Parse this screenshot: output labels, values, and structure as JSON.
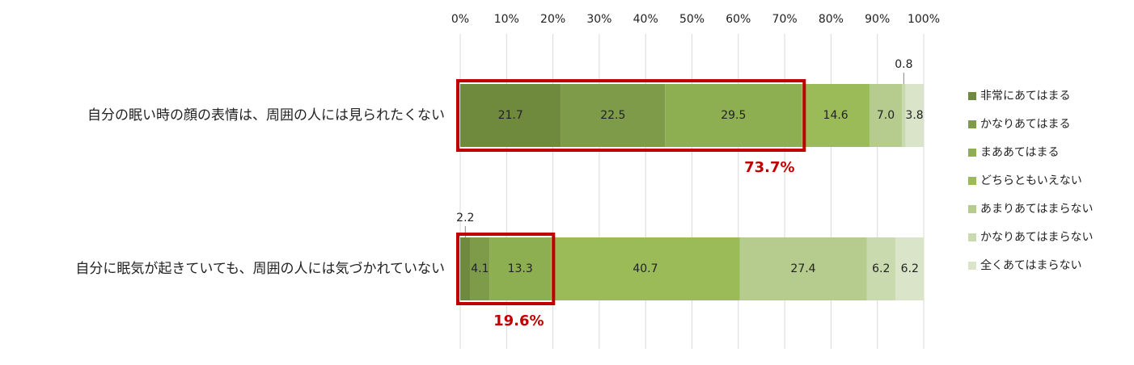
{
  "chart_data": {
    "type": "stacked_bar_horizontal",
    "categories": [
      "自分の眠い時の顔の表情は、周囲の人には見られたくない",
      "自分に眠気が起きていても、周囲の人には気づかれていない"
    ],
    "series": [
      {
        "name": "非常にあてはまる",
        "color": "#6f8a3c",
        "values": [
          21.7,
          2.2
        ]
      },
      {
        "name": "かなりあてはまる",
        "color": "#7d9b49",
        "values": [
          22.5,
          4.1
        ]
      },
      {
        "name": "まああてはまる",
        "color": "#8eae52",
        "values": [
          29.5,
          13.3
        ]
      },
      {
        "name": "どちらともいえない",
        "color": "#9bbb59",
        "values": [
          14.6,
          40.7
        ]
      },
      {
        "name": "あまりあてはまらない",
        "color": "#b6cc8f",
        "values": [
          7,
          27.4
        ],
        "value_labels": [
          "7.0",
          "27.4"
        ]
      },
      {
        "name": "かなりあてはまらない",
        "color": "#c9daae",
        "values": [
          0.8,
          6.2
        ]
      },
      {
        "name": "全くあてはまらない",
        "color": "#dae4c8",
        "values": [
          3.8,
          6.2
        ]
      }
    ],
    "xlim": [
      0,
      100
    ],
    "xticks": [
      {
        "value": 0,
        "label": "0%"
      },
      {
        "value": 10,
        "label": "10%"
      },
      {
        "value": 20,
        "label": "20%"
      },
      {
        "value": 30,
        "label": "30%"
      },
      {
        "value": 40,
        "label": "40%"
      },
      {
        "value": 50,
        "label": "50%"
      },
      {
        "value": 60,
        "label": "60%"
      },
      {
        "value": 70,
        "label": "70%"
      },
      {
        "value": 80,
        "label": "80%"
      },
      {
        "value": 90,
        "label": "90%"
      },
      {
        "value": 100,
        "label": "100%"
      }
    ],
    "grid": true,
    "legend": "right",
    "annotations": [
      {
        "text": "73.7%",
        "color": "#c00000"
      },
      {
        "text": "19.6%",
        "color": "#c00000"
      }
    ]
  }
}
